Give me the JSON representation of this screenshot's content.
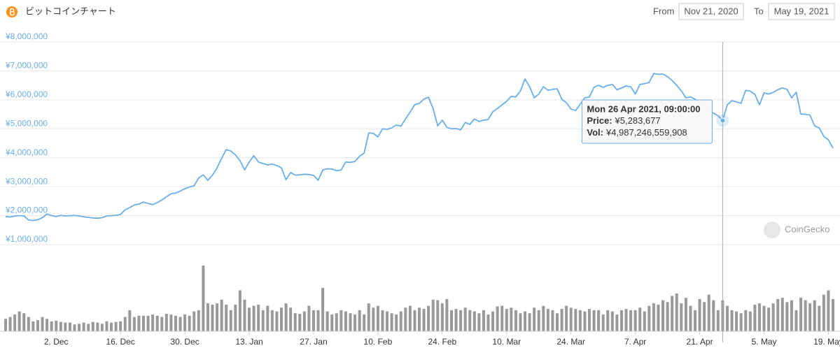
{
  "header": {
    "title": "ビットコインチャート",
    "from_label": "From",
    "from": "Nov 21, 2020",
    "to_label": "To",
    "to": "May 19, 2021"
  },
  "watermark": "CoinGecko",
  "chart_data": {
    "type": "line",
    "color": "#6aaee8",
    "volume_color": "#999999",
    "grid": true,
    "x": [
      "2020-11-21",
      "2020-11-22",
      "2020-11-23",
      "2020-11-24",
      "2020-11-25",
      "2020-11-26",
      "2020-11-27",
      "2020-11-28",
      "2020-11-29",
      "2020-11-30",
      "2020-12-01",
      "2020-12-02",
      "2020-12-03",
      "2020-12-04",
      "2020-12-05",
      "2020-12-06",
      "2020-12-07",
      "2020-12-08",
      "2020-12-09",
      "2020-12-10",
      "2020-12-11",
      "2020-12-12",
      "2020-12-13",
      "2020-12-14",
      "2020-12-15",
      "2020-12-16",
      "2020-12-17",
      "2020-12-18",
      "2020-12-19",
      "2020-12-20",
      "2020-12-21",
      "2020-12-22",
      "2020-12-23",
      "2020-12-24",
      "2020-12-25",
      "2020-12-26",
      "2020-12-27",
      "2020-12-28",
      "2020-12-29",
      "2020-12-30",
      "2020-12-31",
      "2021-01-01",
      "2021-01-02",
      "2021-01-03",
      "2021-01-04",
      "2021-01-05",
      "2021-01-06",
      "2021-01-07",
      "2021-01-08",
      "2021-01-09",
      "2021-01-10",
      "2021-01-11",
      "2021-01-12",
      "2021-01-13",
      "2021-01-14",
      "2021-01-15",
      "2021-01-16",
      "2021-01-17",
      "2021-01-18",
      "2021-01-19",
      "2021-01-20",
      "2021-01-21",
      "2021-01-22",
      "2021-01-23",
      "2021-01-24",
      "2021-01-25",
      "2021-01-26",
      "2021-01-27",
      "2021-01-28",
      "2021-01-29",
      "2021-01-30",
      "2021-01-31",
      "2021-02-01",
      "2021-02-02",
      "2021-02-03",
      "2021-02-04",
      "2021-02-05",
      "2021-02-06",
      "2021-02-07",
      "2021-02-08",
      "2021-02-09",
      "2021-02-10",
      "2021-02-11",
      "2021-02-12",
      "2021-02-13",
      "2021-02-14",
      "2021-02-15",
      "2021-02-16",
      "2021-02-17",
      "2021-02-18",
      "2021-02-19",
      "2021-02-20",
      "2021-02-21",
      "2021-02-22",
      "2021-02-23",
      "2021-02-24",
      "2021-02-25",
      "2021-02-26",
      "2021-02-27",
      "2021-02-28",
      "2021-03-01",
      "2021-03-02",
      "2021-03-03",
      "2021-03-04",
      "2021-03-05",
      "2021-03-06",
      "2021-03-07",
      "2021-03-08",
      "2021-03-09",
      "2021-03-10",
      "2021-03-11",
      "2021-03-12",
      "2021-03-13",
      "2021-03-14",
      "2021-03-15",
      "2021-03-16",
      "2021-03-17",
      "2021-03-18",
      "2021-03-19",
      "2021-03-20",
      "2021-03-21",
      "2021-03-22",
      "2021-03-23",
      "2021-03-24",
      "2021-03-25",
      "2021-03-26",
      "2021-03-27",
      "2021-03-28",
      "2021-03-29",
      "2021-03-30",
      "2021-03-31",
      "2021-04-01",
      "2021-04-02",
      "2021-04-03",
      "2021-04-04",
      "2021-04-05",
      "2021-04-06",
      "2021-04-07",
      "2021-04-08",
      "2021-04-09",
      "2021-04-10",
      "2021-04-11",
      "2021-04-12",
      "2021-04-13",
      "2021-04-14",
      "2021-04-15",
      "2021-04-16",
      "2021-04-17",
      "2021-04-18",
      "2021-04-19",
      "2021-04-20",
      "2021-04-21",
      "2021-04-22",
      "2021-04-23",
      "2021-04-24",
      "2021-04-25",
      "2021-04-26",
      "2021-04-27",
      "2021-04-28",
      "2021-04-29",
      "2021-04-30",
      "2021-05-01",
      "2021-05-02",
      "2021-05-03",
      "2021-05-04",
      "2021-05-05",
      "2021-05-06",
      "2021-05-07",
      "2021-05-08",
      "2021-05-09",
      "2021-05-10",
      "2021-05-11",
      "2021-05-12",
      "2021-05-13",
      "2021-05-14",
      "2021-05-15",
      "2021-05-16",
      "2021-05-17",
      "2021-05-18",
      "2021-05-19",
      "2021-05-20"
    ],
    "values": [
      1970000,
      1950000,
      1990000,
      2000000,
      1990000,
      1850000,
      1830000,
      1860000,
      1930000,
      2060000,
      2000000,
      1970000,
      2010000,
      1990000,
      2000000,
      2010000,
      1990000,
      1960000,
      1940000,
      1920000,
      1910000,
      1930000,
      1990000,
      2000000,
      2010000,
      2040000,
      2200000,
      2280000,
      2370000,
      2400000,
      2470000,
      2420000,
      2380000,
      2450000,
      2540000,
      2650000,
      2760000,
      2780000,
      2850000,
      2930000,
      2990000,
      3030000,
      3300000,
      3410000,
      3220000,
      3400000,
      3650000,
      3980000,
      4280000,
      4230000,
      4100000,
      3900000,
      3580000,
      3850000,
      4070000,
      3850000,
      3800000,
      3750000,
      3780000,
      3730000,
      3650000,
      3240000,
      3490000,
      3400000,
      3410000,
      3430000,
      3420000,
      3390000,
      3220000,
      3580000,
      3620000,
      3610000,
      3550000,
      3580000,
      3850000,
      3840000,
      3870000,
      4050000,
      4160000,
      4860000,
      4840000,
      4720000,
      5000000,
      4980000,
      5030000,
      5130000,
      5090000,
      5340000,
      5580000,
      5830000,
      5880000,
      6020000,
      6090000,
      5700000,
      5100000,
      5300000,
      5050000,
      5000000,
      5010000,
      4960000,
      5220000,
      5150000,
      5340000,
      5250000,
      5300000,
      5320000,
      5590000,
      5700000,
      5830000,
      5950000,
      6120000,
      6100000,
      6310000,
      6720000,
      6450000,
      6070000,
      6200000,
      6450000,
      6330000,
      6360000,
      6380000,
      6020000,
      5900000,
      5680000,
      5630000,
      5850000,
      6070000,
      6100000,
      6430000,
      6500000,
      6430000,
      6500000,
      6530000,
      6350000,
      6410000,
      6480000,
      6450000,
      6200000,
      6530000,
      6560000,
      6600000,
      6910000,
      6880000,
      6890000,
      6800000,
      6670000,
      6500000,
      6310000,
      6070000,
      6100000,
      6020000,
      5900000,
      5830000,
      5600000,
      5540000,
      5450000,
      5283677,
      5830000,
      5970000,
      5930000,
      5880000,
      6330000,
      6300000,
      6190000,
      5830000,
      6240000,
      6200000,
      6260000,
      6350000,
      6410000,
      6360000,
      6070000,
      6260000,
      5510000,
      5500000,
      5470000,
      5100000,
      5030000,
      4740000,
      4620000,
      4330000
    ],
    "volume": [
      2000000000000.0,
      2300000000000.0,
      2700000000000.0,
      3200000000000.0,
      2900000000000.0,
      2300000000000.0,
      1600000000000.0,
      1800000000000.0,
      2300000000000.0,
      2000000000000.0,
      1600000000000.0,
      1700000000000.0,
      1500000000000.0,
      1400000000000.0,
      1400000000000.0,
      1100000000000.0,
      1200000000000.0,
      1400000000000.0,
      1200000000000.0,
      1500000000000.0,
      1400000000000.0,
      1200000000000.0,
      1600000000000.0,
      1400000000000.0,
      1500000000000.0,
      1600000000000.0,
      2300000000000.0,
      3400000000000.0,
      2300000000000.0,
      2500000000000.0,
      2500000000000.0,
      2500000000000.0,
      2700000000000.0,
      2500000000000.0,
      2300000000000.0,
      2800000000000.0,
      2700000000000.0,
      2500000000000.0,
      2300000000000.0,
      2700000000000.0,
      2500000000000.0,
      3200000000000.0,
      3400000000000.0,
      10600000000000.0,
      4500000000000.0,
      4300000000000.0,
      4500000000000.0,
      5100000000000.0,
      4300000000000.0,
      3400000000000.0,
      4300000000000.0,
      6600000000000.0,
      5100000000000.0,
      3800000000000.0,
      4100000000000.0,
      4300000000000.0,
      3400000000000.0,
      4100000000000.0,
      3400000000000.0,
      3200000000000.0,
      3800000000000.0,
      4500000000000.0,
      3800000000000.0,
      2900000000000.0,
      2800000000000.0,
      3200000000000.0,
      4100000000000.0,
      3400000000000.0,
      3400000000000.0,
      7000000000000.0,
      3200000000000.0,
      2700000000000.0,
      2900000000000.0,
      3400000000000.0,
      3200000000000.0,
      2900000000000.0,
      2700000000000.0,
      3400000000000.0,
      2700000000000.0,
      4500000000000.0,
      3800000000000.0,
      4100000000000.0,
      3400000000000.0,
      3200000000000.0,
      2900000000000.0,
      2700000000000.0,
      3200000000000.0,
      3800000000000.0,
      4100000000000.0,
      3400000000000.0,
      3800000000000.0,
      3600000000000.0,
      4100000000000.0,
      5100000000000.0,
      5000000000000.0,
      4500000000000.0,
      5200000000000.0,
      3400000000000.0,
      3600000000000.0,
      3400000000000.0,
      3800000000000.0,
      3400000000000.0,
      3200000000000.0,
      2900000000000.0,
      3400000000000.0,
      2700000000000.0,
      3200000000000.0,
      4000000000000.0,
      4100000000000.0,
      3600000000000.0,
      3800000000000.0,
      3400000000000.0,
      2900000000000.0,
      3200000000000.0,
      2900000000000.0,
      3800000000000.0,
      3400000000000.0,
      4100000000000.0,
      3600000000000.0,
      3400000000000.0,
      2900000000000.0,
      3600000000000.0,
      4100000000000.0,
      3800000000000.0,
      3600000000000.0,
      3400000000000.0,
      3200000000000.0,
      3600000000000.0,
      3400000000000.0,
      3400000000000.0,
      2700000000000.0,
      3400000000000.0,
      3200000000000.0,
      2700000000000.0,
      3400000000000.0,
      3600000000000.0,
      3400000000000.0,
      3400000000000.0,
      3800000000000.0,
      3200000000000.0,
      4100000000000.0,
      4500000000000.0,
      4300000000000.0,
      5000000000000.0,
      4700000000000.0,
      5700000000000.0,
      6100000000000.0,
      4500000000000.0,
      5400000000000.0,
      4100000000000.0,
      3400000000000.0,
      5200000000000.0,
      4700000000000.0,
      5900000000000.0,
      5000000000000.0,
      3400000000000.0,
      4987246559908,
      4100000000000.0,
      3400000000000.0,
      3200000000000.0,
      2900000000000.0,
      3400000000000.0,
      3200000000000.0,
      4300000000000.0,
      4500000000000.0,
      4100000000000.0,
      3800000000000.0,
      4500000000000.0,
      5200000000000.0,
      5400000000000.0,
      4700000000000.0,
      5000000000000.0,
      3400000000000.0,
      5400000000000.0,
      5000000000000.0,
      4500000000000.0,
      5000000000000.0,
      4100000000000.0,
      5900000000000.0,
      6600000000000.0,
      5200000000000.0
    ],
    "xlim": [
      "2020-11-21",
      "2021-05-20"
    ],
    "xticks": [
      {
        "value": "2020-12-02",
        "label": "2. Dec"
      },
      {
        "value": "2020-12-16",
        "label": "16. Dec"
      },
      {
        "value": "2020-12-30",
        "label": "30. Dec"
      },
      {
        "value": "2021-01-13",
        "label": "13. Jan"
      },
      {
        "value": "2021-01-27",
        "label": "27. Jan"
      },
      {
        "value": "2021-02-10",
        "label": "10. Feb"
      },
      {
        "value": "2021-02-24",
        "label": "24. Feb"
      },
      {
        "value": "2021-03-10",
        "label": "10. Mar"
      },
      {
        "value": "2021-03-24",
        "label": "24. Mar"
      },
      {
        "value": "2021-04-07",
        "label": "7. Apr"
      },
      {
        "value": "2021-04-21",
        "label": "21. Apr"
      },
      {
        "value": "2021-05-05",
        "label": "5. May"
      },
      {
        "value": "2021-05-19",
        "label": "19. May"
      }
    ],
    "ylim": [
      1000000,
      8000000
    ],
    "yticks": [
      {
        "value": 1000000,
        "label": "¥1,000,000"
      },
      {
        "value": 2000000,
        "label": "¥2,000,000"
      },
      {
        "value": 3000000,
        "label": "¥3,000,000"
      },
      {
        "value": 4000000,
        "label": "¥4,000,000"
      },
      {
        "value": 5000000,
        "label": "¥5,000,000"
      },
      {
        "value": 6000000,
        "label": "¥6,000,000"
      },
      {
        "value": 7000000,
        "label": "¥7,000,000"
      },
      {
        "value": 8000000,
        "label": "¥8,000,000"
      }
    ],
    "tooltip": {
      "index": 156,
      "date": "Mon 26 Apr 2021, 09:00:00",
      "price_label": "Price:",
      "price": "¥5,283,677",
      "vol_label": "Vol:",
      "vol": "¥4,987,246,559,908"
    }
  }
}
